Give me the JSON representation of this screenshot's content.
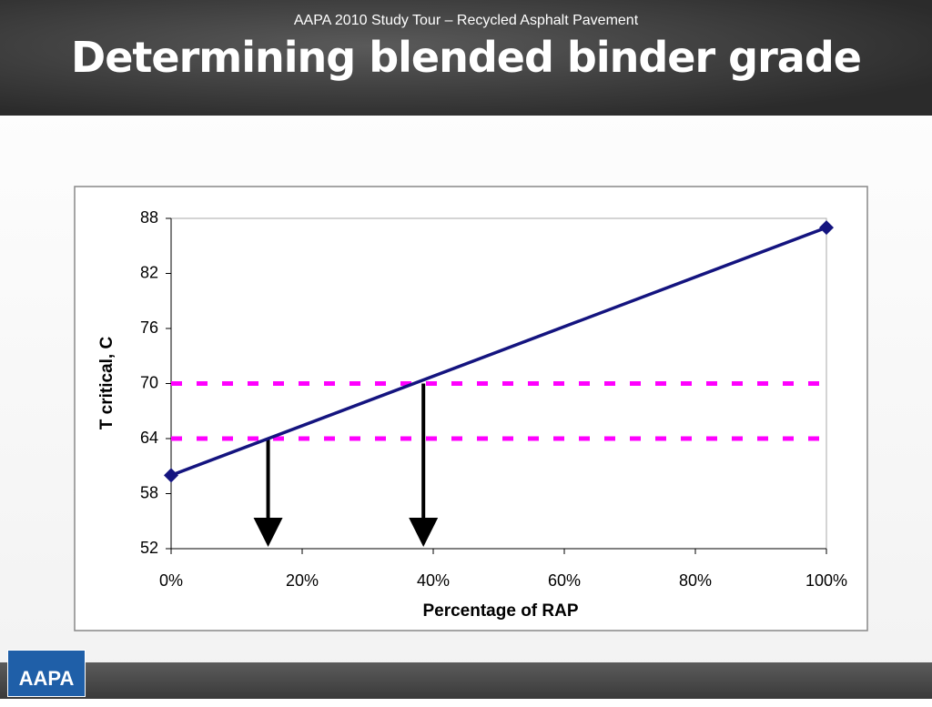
{
  "slide": {
    "title": "Determining blended binder grade",
    "footer": "AAPA 2010 Study Tour – Recycled Asphalt Pavement",
    "logo": "AAPA"
  },
  "chart_data": {
    "type": "line",
    "x_label": "Percentage of RAP",
    "y_label": "T critical, C",
    "x": [
      0,
      100
    ],
    "series": [
      {
        "name": "T critical",
        "color": "#14147f",
        "values": [
          60,
          87
        ]
      }
    ],
    "xlim": [
      0,
      100
    ],
    "xticks": [
      {
        "value": 0,
        "label": "0%"
      },
      {
        "value": 20,
        "label": "20%"
      },
      {
        "value": 40,
        "label": "40%"
      },
      {
        "value": 60,
        "label": "60%"
      },
      {
        "value": 80,
        "label": "80%"
      },
      {
        "value": 100,
        "label": "100%"
      }
    ],
    "ylim": [
      52,
      88
    ],
    "yticks": [
      52,
      58,
      64,
      70,
      76,
      82,
      88
    ],
    "reference_lines": [
      {
        "value": 70,
        "color": "#ff00ff"
      },
      {
        "value": 64,
        "color": "#ff00ff"
      }
    ],
    "arrows": [
      {
        "x": 14.8,
        "y": 64
      },
      {
        "x": 38.5,
        "y": 70
      }
    ]
  }
}
